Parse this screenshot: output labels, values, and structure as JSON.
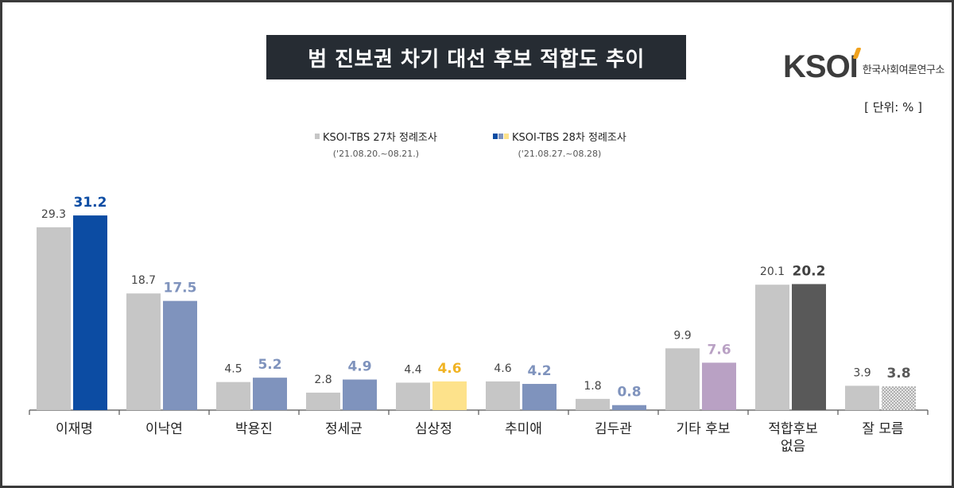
{
  "title": "범 진보권 차기 대선 후보 적합도 추이",
  "logo": {
    "mark": "KSOI",
    "text": "한국사회여론연구소"
  },
  "unit_label": "[ 단위: % ]",
  "legend": [
    {
      "label": "KSOI-TBS 27차 정례조사",
      "period": "('21.08.20.~08.21.)"
    },
    {
      "label": "KSOI-TBS 28차 정례조사",
      "period": "('21.08.27.~08.28)"
    }
  ],
  "colors": {
    "prev": "#c6c6c6",
    "curr_lee_jaemyung": "#0c4ca3",
    "curr_default": "#7f93bd",
    "curr_sim": "#fde28b",
    "curr_other": "#b9a1c4",
    "curr_none": "#595959",
    "curr_unknown": "#bdbdbd",
    "label_lee_jaemyung": "#0c4ca3",
    "label_default": "#7f93bd",
    "label_sim": "#f0b323",
    "label_other": "#b9a1c4",
    "label_none": "#404040",
    "label_unknown": "#595959"
  },
  "chart_data": {
    "type": "bar",
    "categories": [
      "이재명",
      "이낙연",
      "박용진",
      "정세균",
      "심상정",
      "추미애",
      "김두관",
      "기타 후보",
      "적합후보\n없음",
      "잘 모름"
    ],
    "series": [
      {
        "name": "KSOI-TBS 27차 정례조사",
        "values": [
          29.3,
          18.7,
          4.5,
          2.8,
          4.4,
          4.6,
          1.8,
          9.9,
          20.1,
          3.9
        ]
      },
      {
        "name": "KSOI-TBS 28차 정례조사",
        "values": [
          31.2,
          17.5,
          5.2,
          4.9,
          4.6,
          4.2,
          0.8,
          7.6,
          20.2,
          3.8
        ]
      }
    ],
    "ylim": [
      0,
      35
    ],
    "grid": false,
    "legend_position": "top-center"
  }
}
